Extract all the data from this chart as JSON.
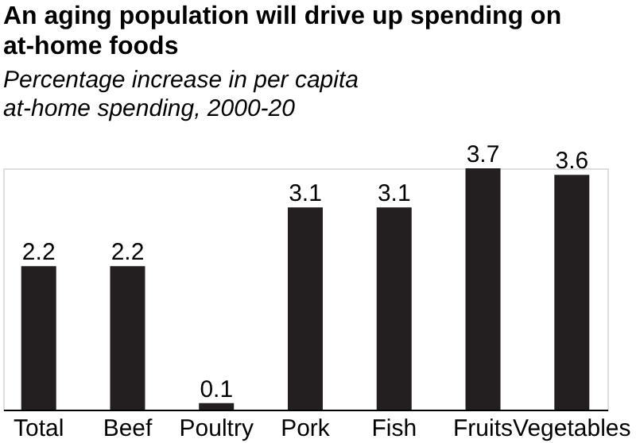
{
  "chart_data": {
    "type": "bar",
    "title": "An aging population will drive up spending on at-home foods",
    "subtitle": "Percentage increase in per capita at-home spending, 2000-20",
    "categories": [
      "Total",
      "Beef",
      "Poultry",
      "Pork",
      "Fish",
      "Fruits",
      "Vegetables"
    ],
    "values": [
      2.2,
      2.2,
      0.1,
      3.1,
      3.1,
      3.7,
      3.6
    ],
    "color": "#231f20",
    "data_labels": true,
    "grid": false
  }
}
